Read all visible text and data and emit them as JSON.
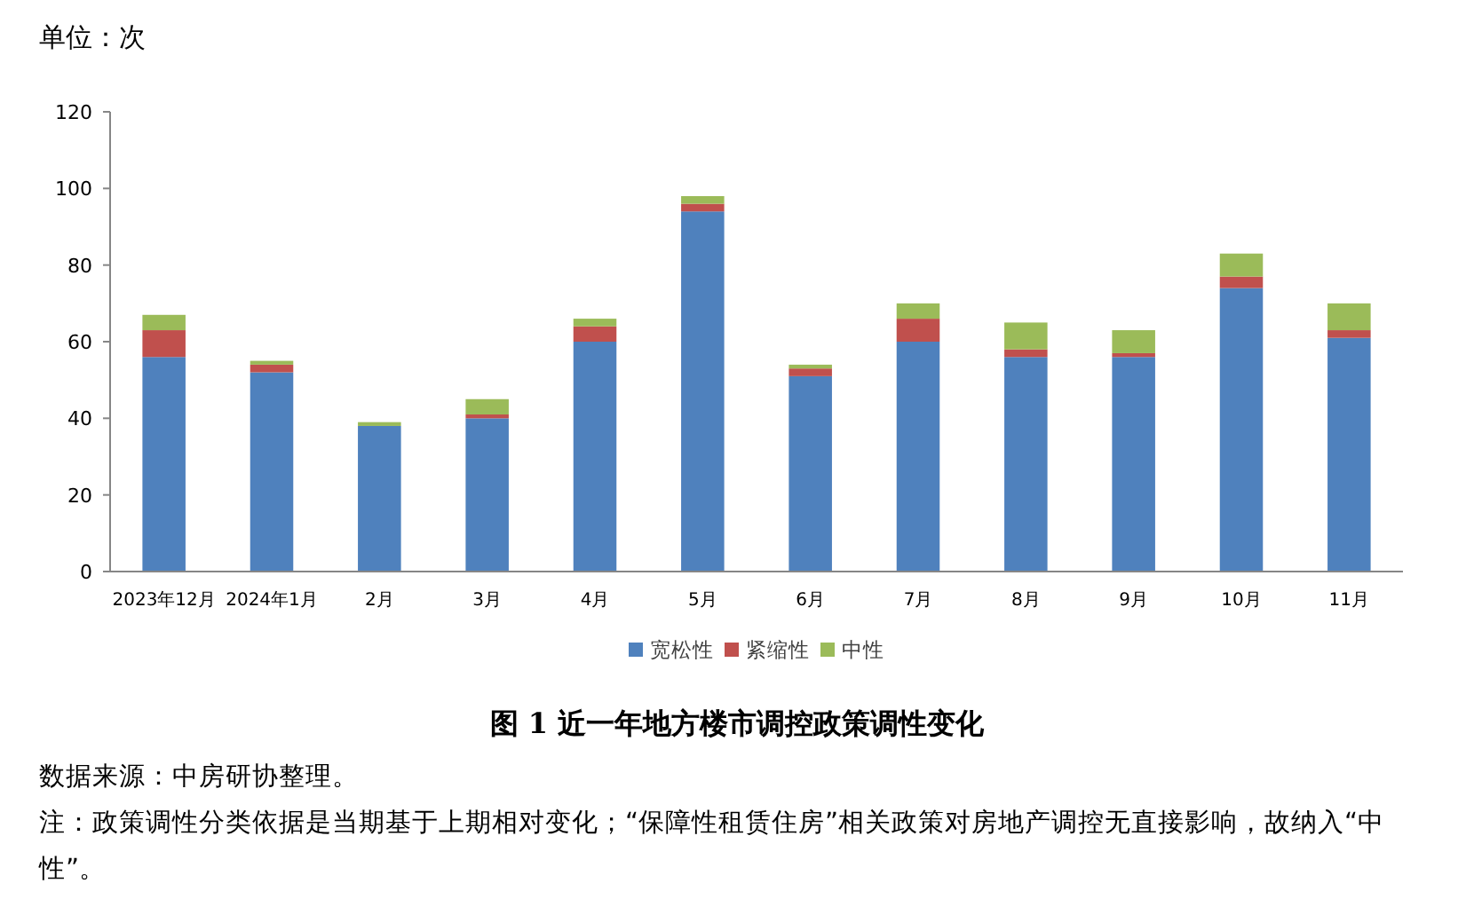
{
  "chart_data": {
    "type": "bar",
    "stacked": true,
    "title": "图 1 近一年地方楼市调控政策调性变化",
    "ylabel": "单位：次",
    "annotations": [
      "数据来源：中房研协整理。",
      "注：政策调性分类依据是当期基于上期相对变化；“保障性租赁住房”相关政策对房地产调控无直接影响，故纳入“中性”。"
    ],
    "categories": [
      "2023年12月",
      "2024年1月",
      "2月",
      "3月",
      "4月",
      "5月",
      "6月",
      "7月",
      "8月",
      "9月",
      "10月",
      "11月"
    ],
    "series": [
      {
        "name": "宽松性",
        "color": "#4f81bd",
        "values": [
          56,
          52,
          38,
          40,
          60,
          94,
          51,
          60,
          56,
          56,
          74,
          61
        ]
      },
      {
        "name": "紧缩性",
        "color": "#c0504d",
        "values": [
          7,
          2,
          0,
          1,
          4,
          2,
          2,
          6,
          2,
          1,
          3,
          2
        ]
      },
      {
        "name": "中性",
        "color": "#9bbb59",
        "values": [
          4,
          1,
          1,
          4,
          2,
          2,
          1,
          4,
          7,
          6,
          6,
          7
        ]
      }
    ],
    "ylim": [
      0,
      120
    ],
    "yticks": [
      0,
      20,
      40,
      60,
      80,
      100,
      120
    ],
    "legend": "bottom"
  }
}
